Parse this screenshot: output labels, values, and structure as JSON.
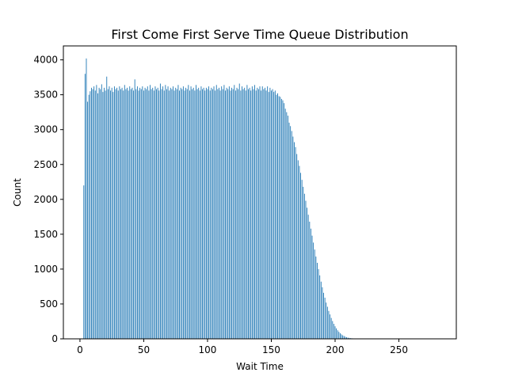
{
  "chart_data": {
    "type": "bar",
    "title": "First Come First Serve Time Queue Distribution",
    "xlabel": "Wait Time",
    "ylabel": "Count",
    "xlim": [
      -13,
      295
    ],
    "ylim": [
      0,
      4200
    ],
    "x_ticks": [
      0,
      50,
      100,
      150,
      200,
      250
    ],
    "y_ticks": [
      0,
      500,
      1000,
      1500,
      2000,
      2500,
      3000,
      3500,
      4000
    ],
    "bar_color": "#1f77b4",
    "grid": false,
    "legend": "none",
    "x_start": 3,
    "values": [
      2200,
      3800,
      4020,
      3400,
      3500,
      3550,
      3600,
      3580,
      3620,
      3560,
      3640,
      3520,
      3600,
      3580,
      3650,
      3540,
      3600,
      3560,
      3760,
      3580,
      3620,
      3560,
      3600,
      3540,
      3620,
      3580,
      3600,
      3560,
      3620,
      3580,
      3600,
      3560,
      3640,
      3580,
      3600,
      3560,
      3620,
      3580,
      3600,
      3560,
      3720,
      3580,
      3620,
      3560,
      3600,
      3580,
      3620,
      3560,
      3600,
      3580,
      3620,
      3560,
      3640,
      3580,
      3600,
      3560,
      3620,
      3580,
      3600,
      3560,
      3660,
      3580,
      3620,
      3560,
      3640,
      3580,
      3620,
      3560,
      3600,
      3580,
      3620,
      3560,
      3600,
      3580,
      3640,
      3560,
      3600,
      3580,
      3620,
      3560,
      3600,
      3580,
      3640,
      3560,
      3620,
      3580,
      3600,
      3560,
      3640,
      3580,
      3600,
      3560,
      3620,
      3580,
      3600,
      3560,
      3600,
      3580,
      3620,
      3560,
      3600,
      3580,
      3620,
      3560,
      3640,
      3580,
      3600,
      3560,
      3620,
      3580,
      3640,
      3560,
      3600,
      3580,
      3620,
      3560,
      3600,
      3580,
      3640,
      3560,
      3600,
      3580,
      3660,
      3560,
      3620,
      3580,
      3600,
      3560,
      3640,
      3580,
      3600,
      3560,
      3620,
      3580,
      3640,
      3560,
      3600,
      3580,
      3620,
      3560,
      3620,
      3580,
      3600,
      3560,
      3620,
      3540,
      3600,
      3560,
      3580,
      3540,
      3560,
      3500,
      3520,
      3480,
      3470,
      3440,
      3420,
      3380,
      3300,
      3250,
      3200,
      3100,
      3050,
      2980,
      2900,
      2820,
      2750,
      2650,
      2560,
      2480,
      2380,
      2280,
      2180,
      2080,
      1980,
      1880,
      1780,
      1680,
      1580,
      1480,
      1380,
      1280,
      1180,
      1090,
      1000,
      910,
      820,
      740,
      660,
      590,
      520,
      460,
      400,
      350,
      300,
      255,
      215,
      180,
      150,
      122,
      100,
      80,
      64,
      50,
      40,
      30,
      23,
      17,
      13,
      10,
      8,
      6,
      4,
      3,
      2,
      2,
      1,
      1,
      1,
      1
    ]
  }
}
